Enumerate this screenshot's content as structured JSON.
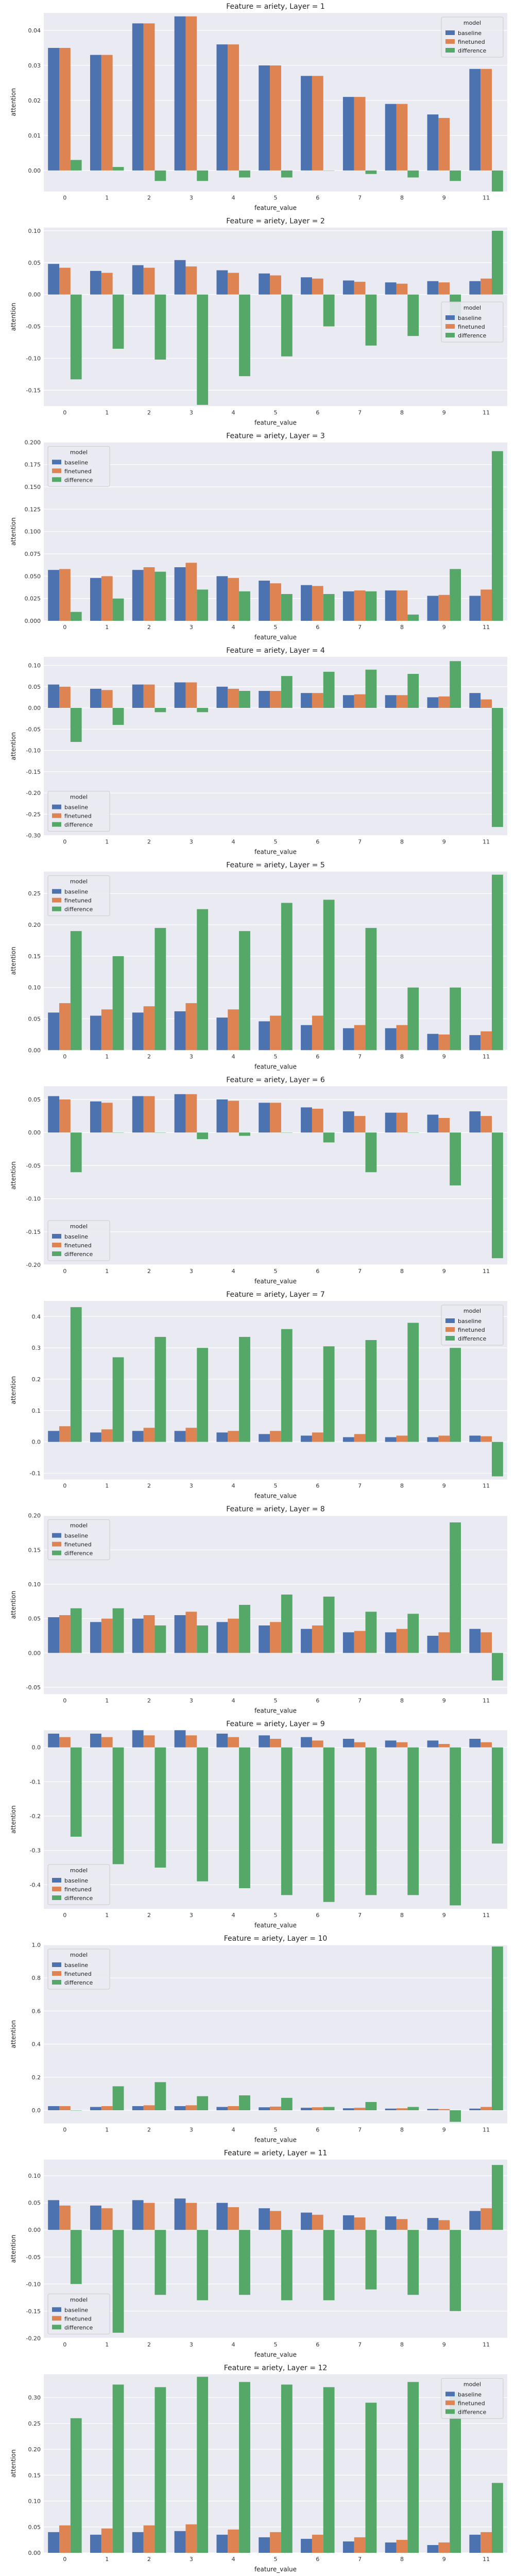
{
  "colors": {
    "baseline": "#4c72b0",
    "finetuned": "#dd8452",
    "difference": "#55a868",
    "panel_background": "#eaeaf2",
    "grid": "#ffffff"
  },
  "chart_data": [
    {
      "type": "bar",
      "title": "Feature = ariety, Layer = 1",
      "xlabel": "feature_value",
      "ylabel": "attention",
      "categories": [
        "0",
        "1",
        "2",
        "3",
        "4",
        "5",
        "6",
        "7",
        "8",
        "9",
        "11"
      ],
      "ylim": [
        -0.006,
        0.045
      ],
      "yticks": [
        0.0,
        0.01,
        0.02,
        0.03,
        0.04
      ],
      "ytick_labels": [
        "0.00",
        "0.01",
        "0.02",
        "0.03",
        "0.04"
      ],
      "legend_title": "model",
      "legend_position": "top-right",
      "series": [
        {
          "name": "baseline",
          "values": [
            0.035,
            0.033,
            0.042,
            0.044,
            0.036,
            0.03,
            0.027,
            0.021,
            0.019,
            0.016,
            0.029
          ]
        },
        {
          "name": "finetuned",
          "values": [
            0.035,
            0.033,
            0.042,
            0.044,
            0.036,
            0.03,
            0.027,
            0.021,
            0.019,
            0.015,
            0.029
          ]
        },
        {
          "name": "difference",
          "values": [
            0.003,
            0.001,
            -0.003,
            -0.003,
            -0.002,
            -0.002,
            0.0,
            -0.001,
            -0.002,
            -0.003,
            -0.006
          ]
        }
      ]
    },
    {
      "type": "bar",
      "title": "Feature = ariety, Layer = 2",
      "xlabel": "feature_value",
      "ylabel": "attention",
      "categories": [
        "0",
        "1",
        "2",
        "3",
        "4",
        "5",
        "6",
        "7",
        "8",
        "9",
        "11"
      ],
      "ylim": [
        -0.175,
        0.105
      ],
      "yticks": [
        -0.15,
        -0.1,
        -0.05,
        0.0,
        0.05,
        0.1
      ],
      "ytick_labels": [
        "-0.15",
        "-0.10",
        "-0.05",
        "0.00",
        "0.05",
        "0.10"
      ],
      "legend_title": "model",
      "legend_position": "center-right",
      "series": [
        {
          "name": "baseline",
          "values": [
            0.048,
            0.037,
            0.046,
            0.054,
            0.038,
            0.033,
            0.027,
            0.022,
            0.019,
            0.021,
            0.021
          ]
        },
        {
          "name": "finetuned",
          "values": [
            0.042,
            0.034,
            0.042,
            0.044,
            0.034,
            0.03,
            0.025,
            0.02,
            0.017,
            0.019,
            0.025
          ]
        },
        {
          "name": "difference",
          "values": [
            -0.133,
            -0.085,
            -0.102,
            -0.173,
            -0.128,
            -0.097,
            -0.05,
            -0.08,
            -0.065,
            -0.04,
            0.1
          ]
        }
      ]
    },
    {
      "type": "bar",
      "title": "Feature = ariety, Layer = 3",
      "xlabel": "feature_value",
      "ylabel": "attention",
      "categories": [
        "0",
        "1",
        "2",
        "3",
        "4",
        "5",
        "6",
        "7",
        "8",
        "9",
        "11"
      ],
      "ylim": [
        0.0,
        0.2
      ],
      "yticks": [
        0.0,
        0.025,
        0.05,
        0.075,
        0.1,
        0.125,
        0.15,
        0.175,
        0.2
      ],
      "ytick_labels": [
        "0.000",
        "0.025",
        "0.050",
        "0.075",
        "0.100",
        "0.125",
        "0.150",
        "0.175",
        "0.200"
      ],
      "legend_title": "model",
      "legend_position": "top-left",
      "series": [
        {
          "name": "baseline",
          "values": [
            0.057,
            0.048,
            0.057,
            0.06,
            0.05,
            0.045,
            0.04,
            0.033,
            0.034,
            0.028,
            0.028
          ]
        },
        {
          "name": "finetuned",
          "values": [
            0.058,
            0.05,
            0.06,
            0.065,
            0.048,
            0.042,
            0.039,
            0.034,
            0.034,
            0.029,
            0.035
          ]
        },
        {
          "name": "difference",
          "values": [
            0.01,
            0.025,
            0.055,
            0.035,
            0.033,
            0.03,
            0.03,
            0.033,
            0.007,
            0.058,
            0.19
          ]
        }
      ]
    },
    {
      "type": "bar",
      "title": "Feature = ariety, Layer = 4",
      "xlabel": "feature_value",
      "ylabel": "attention",
      "categories": [
        "0",
        "1",
        "2",
        "3",
        "4",
        "5",
        "6",
        "7",
        "8",
        "9",
        "11"
      ],
      "ylim": [
        -0.3,
        0.12
      ],
      "yticks": [
        -0.3,
        -0.25,
        -0.2,
        -0.15,
        -0.1,
        -0.05,
        0.0,
        0.05,
        0.1
      ],
      "ytick_labels": [
        "-0.30",
        "-0.25",
        "-0.20",
        "-0.15",
        "-0.10",
        "-0.05",
        "0.00",
        "0.05",
        "0.10"
      ],
      "legend_title": "model",
      "legend_position": "bottom-left",
      "series": [
        {
          "name": "baseline",
          "values": [
            0.055,
            0.045,
            0.055,
            0.06,
            0.05,
            0.04,
            0.035,
            0.03,
            0.03,
            0.025,
            0.035
          ]
        },
        {
          "name": "finetuned",
          "values": [
            0.05,
            0.042,
            0.055,
            0.06,
            0.045,
            0.04,
            0.035,
            0.032,
            0.03,
            0.027,
            0.02
          ]
        },
        {
          "name": "difference",
          "values": [
            -0.08,
            -0.04,
            -0.01,
            -0.01,
            0.04,
            0.075,
            0.085,
            0.09,
            0.08,
            0.11,
            -0.28
          ]
        }
      ]
    },
    {
      "type": "bar",
      "title": "Feature = ariety, Layer = 5",
      "xlabel": "feature_value",
      "ylabel": "attention",
      "categories": [
        "0",
        "1",
        "2",
        "3",
        "4",
        "5",
        "6",
        "7",
        "8",
        "9",
        "11"
      ],
      "ylim": [
        0.0,
        0.285
      ],
      "yticks": [
        0.0,
        0.05,
        0.1,
        0.15,
        0.2,
        0.25
      ],
      "ytick_labels": [
        "0.00",
        "0.05",
        "0.10",
        "0.15",
        "0.20",
        "0.25"
      ],
      "legend_title": "model",
      "legend_position": "top-left",
      "series": [
        {
          "name": "baseline",
          "values": [
            0.06,
            0.055,
            0.06,
            0.062,
            0.052,
            0.046,
            0.04,
            0.035,
            0.035,
            0.026,
            0.024
          ]
        },
        {
          "name": "finetuned",
          "values": [
            0.075,
            0.065,
            0.07,
            0.075,
            0.065,
            0.055,
            0.055,
            0.04,
            0.04,
            0.025,
            0.03
          ]
        },
        {
          "name": "difference",
          "values": [
            0.19,
            0.15,
            0.195,
            0.225,
            0.19,
            0.235,
            0.24,
            0.195,
            0.1,
            0.1,
            0.28
          ]
        }
      ]
    },
    {
      "type": "bar",
      "title": "Feature = ariety, Layer = 6",
      "xlabel": "feature_value",
      "ylabel": "attention",
      "categories": [
        "0",
        "1",
        "2",
        "3",
        "4",
        "5",
        "6",
        "7",
        "8",
        "9",
        "11"
      ],
      "ylim": [
        -0.2,
        0.07
      ],
      "yticks": [
        -0.2,
        -0.15,
        -0.1,
        -0.05,
        0.0,
        0.05
      ],
      "ytick_labels": [
        "-0.20",
        "-0.15",
        "-0.10",
        "-0.05",
        "0.00",
        "0.05"
      ],
      "legend_title": "model",
      "legend_position": "bottom-left",
      "series": [
        {
          "name": "baseline",
          "values": [
            0.055,
            0.047,
            0.055,
            0.058,
            0.05,
            0.045,
            0.038,
            0.032,
            0.03,
            0.027,
            0.032
          ]
        },
        {
          "name": "finetuned",
          "values": [
            0.05,
            0.045,
            0.055,
            0.058,
            0.048,
            0.045,
            0.036,
            0.025,
            0.03,
            0.022,
            0.025
          ]
        },
        {
          "name": "difference",
          "values": [
            -0.06,
            0.0,
            0.0,
            -0.01,
            -0.005,
            0.0,
            -0.015,
            -0.06,
            0.0,
            -0.08,
            -0.19
          ]
        }
      ]
    },
    {
      "type": "bar",
      "title": "Feature = ariety, Layer = 7",
      "xlabel": "feature_value",
      "ylabel": "attention",
      "categories": [
        "0",
        "1",
        "2",
        "3",
        "4",
        "5",
        "6",
        "7",
        "8",
        "9",
        "11"
      ],
      "ylim": [
        -0.12,
        0.45
      ],
      "yticks": [
        -0.1,
        0.0,
        0.1,
        0.2,
        0.3,
        0.4
      ],
      "ytick_labels": [
        "-0.1",
        "0.0",
        "0.1",
        "0.2",
        "0.3",
        "0.4"
      ],
      "legend_title": "model",
      "legend_position": "top-right",
      "series": [
        {
          "name": "baseline",
          "values": [
            0.035,
            0.03,
            0.035,
            0.035,
            0.03,
            0.025,
            0.02,
            0.015,
            0.015,
            0.015,
            0.02
          ]
        },
        {
          "name": "finetuned",
          "values": [
            0.05,
            0.04,
            0.045,
            0.045,
            0.035,
            0.035,
            0.03,
            0.025,
            0.02,
            0.02,
            0.018
          ]
        },
        {
          "name": "difference",
          "values": [
            0.43,
            0.27,
            0.335,
            0.3,
            0.335,
            0.36,
            0.305,
            0.325,
            0.38,
            0.3,
            -0.11
          ]
        }
      ]
    },
    {
      "type": "bar",
      "title": "Feature = ariety, Layer = 8",
      "xlabel": "feature_value",
      "ylabel": "attention",
      "categories": [
        "0",
        "1",
        "2",
        "3",
        "4",
        "5",
        "6",
        "7",
        "8",
        "9",
        "11"
      ],
      "ylim": [
        -0.06,
        0.2
      ],
      "yticks": [
        -0.05,
        0.0,
        0.05,
        0.1,
        0.15,
        0.2
      ],
      "ytick_labels": [
        "-0.05",
        "0.00",
        "0.05",
        "0.10",
        "0.15",
        "0.20"
      ],
      "legend_title": "model",
      "legend_position": "top-left",
      "series": [
        {
          "name": "baseline",
          "values": [
            0.052,
            0.045,
            0.05,
            0.055,
            0.045,
            0.04,
            0.035,
            0.03,
            0.03,
            0.025,
            0.035
          ]
        },
        {
          "name": "finetuned",
          "values": [
            0.055,
            0.05,
            0.055,
            0.06,
            0.05,
            0.045,
            0.04,
            0.032,
            0.035,
            0.03,
            0.03
          ]
        },
        {
          "name": "difference",
          "values": [
            0.065,
            0.065,
            0.04,
            0.04,
            0.07,
            0.085,
            0.082,
            0.06,
            0.057,
            0.19,
            -0.04
          ]
        }
      ]
    },
    {
      "type": "bar",
      "title": "Feature = ariety, Layer = 9",
      "xlabel": "feature_value",
      "ylabel": "attention",
      "categories": [
        "0",
        "1",
        "2",
        "3",
        "4",
        "5",
        "6",
        "7",
        "8",
        "9",
        "11"
      ],
      "ylim": [
        -0.47,
        0.05
      ],
      "yticks": [
        -0.4,
        -0.3,
        -0.2,
        -0.1,
        0.0
      ],
      "ytick_labels": [
        "-0.4",
        "-0.3",
        "-0.2",
        "-0.1",
        "0.0"
      ],
      "legend_title": "model",
      "legend_position": "bottom-left",
      "series": [
        {
          "name": "baseline",
          "values": [
            0.04,
            0.04,
            0.05,
            0.05,
            0.04,
            0.035,
            0.03,
            0.025,
            0.02,
            0.02,
            0.025
          ]
        },
        {
          "name": "finetuned",
          "values": [
            0.03,
            0.03,
            0.035,
            0.035,
            0.03,
            0.025,
            0.02,
            0.015,
            0.015,
            0.01,
            0.015
          ]
        },
        {
          "name": "difference",
          "values": [
            -0.26,
            -0.34,
            -0.35,
            -0.39,
            -0.41,
            -0.43,
            -0.45,
            -0.43,
            -0.43,
            -0.46,
            -0.28
          ]
        }
      ]
    },
    {
      "type": "bar",
      "title": "Feature = ariety, Layer = 10",
      "xlabel": "feature_value",
      "ylabel": "attention",
      "categories": [
        "0",
        "1",
        "2",
        "3",
        "4",
        "5",
        "6",
        "7",
        "8",
        "9",
        "11"
      ],
      "ylim": [
        -0.08,
        1.0
      ],
      "yticks": [
        0.0,
        0.2,
        0.4,
        0.6,
        0.8,
        1.0
      ],
      "ytick_labels": [
        "0.0",
        "0.2",
        "0.4",
        "0.6",
        "0.8",
        "1.0"
      ],
      "legend_title": "model",
      "legend_position": "top-left",
      "series": [
        {
          "name": "baseline",
          "values": [
            0.025,
            0.02,
            0.025,
            0.025,
            0.02,
            0.018,
            0.015,
            0.012,
            0.01,
            0.008,
            0.01
          ]
        },
        {
          "name": "finetuned",
          "values": [
            0.025,
            0.025,
            0.03,
            0.03,
            0.025,
            0.022,
            0.018,
            0.015,
            0.012,
            0.007,
            0.02
          ]
        },
        {
          "name": "difference",
          "values": [
            0.0,
            0.145,
            0.17,
            0.085,
            0.09,
            0.075,
            0.02,
            0.05,
            0.02,
            -0.07,
            0.99
          ]
        }
      ]
    },
    {
      "type": "bar",
      "title": "Feature = ariety, Layer = 11",
      "xlabel": "feature_value",
      "ylabel": "attention",
      "categories": [
        "0",
        "1",
        "2",
        "3",
        "4",
        "5",
        "6",
        "7",
        "8",
        "9",
        "11"
      ],
      "ylim": [
        -0.2,
        0.13
      ],
      "yticks": [
        -0.2,
        -0.15,
        -0.1,
        -0.05,
        0.0,
        0.05,
        0.1
      ],
      "ytick_labels": [
        "-0.20",
        "-0.15",
        "-0.10",
        "-0.05",
        "0.00",
        "0.05",
        "0.10"
      ],
      "legend_title": "model",
      "legend_position": "bottom-left",
      "series": [
        {
          "name": "baseline",
          "values": [
            0.055,
            0.045,
            0.055,
            0.058,
            0.05,
            0.04,
            0.032,
            0.027,
            0.025,
            0.022,
            0.035
          ]
        },
        {
          "name": "finetuned",
          "values": [
            0.045,
            0.04,
            0.05,
            0.05,
            0.042,
            0.035,
            0.028,
            0.023,
            0.02,
            0.018,
            0.04
          ]
        },
        {
          "name": "difference",
          "values": [
            -0.1,
            -0.19,
            -0.12,
            -0.13,
            -0.12,
            -0.13,
            -0.13,
            -0.11,
            -0.12,
            -0.15,
            0.12
          ]
        }
      ]
    },
    {
      "type": "bar",
      "title": "Feature = ariety, Layer = 12",
      "xlabel": "feature_value",
      "ylabel": "attention",
      "categories": [
        "0",
        "1",
        "2",
        "3",
        "4",
        "5",
        "6",
        "7",
        "8",
        "9",
        "11"
      ],
      "ylim": [
        0.0,
        0.345
      ],
      "yticks": [
        0.0,
        0.05,
        0.1,
        0.15,
        0.2,
        0.25,
        0.3
      ],
      "ytick_labels": [
        "0.00",
        "0.05",
        "0.10",
        "0.15",
        "0.20",
        "0.25",
        "0.30"
      ],
      "legend_title": "model",
      "legend_position": "top-right",
      "series": [
        {
          "name": "baseline",
          "values": [
            0.04,
            0.035,
            0.04,
            0.042,
            0.035,
            0.03,
            0.027,
            0.022,
            0.02,
            0.015,
            0.035
          ]
        },
        {
          "name": "finetuned",
          "values": [
            0.053,
            0.047,
            0.053,
            0.055,
            0.045,
            0.04,
            0.035,
            0.03,
            0.025,
            0.02,
            0.04
          ]
        },
        {
          "name": "difference",
          "values": [
            0.26,
            0.325,
            0.32,
            0.34,
            0.33,
            0.325,
            0.32,
            0.29,
            0.33,
            0.31,
            0.135
          ]
        }
      ]
    }
  ]
}
